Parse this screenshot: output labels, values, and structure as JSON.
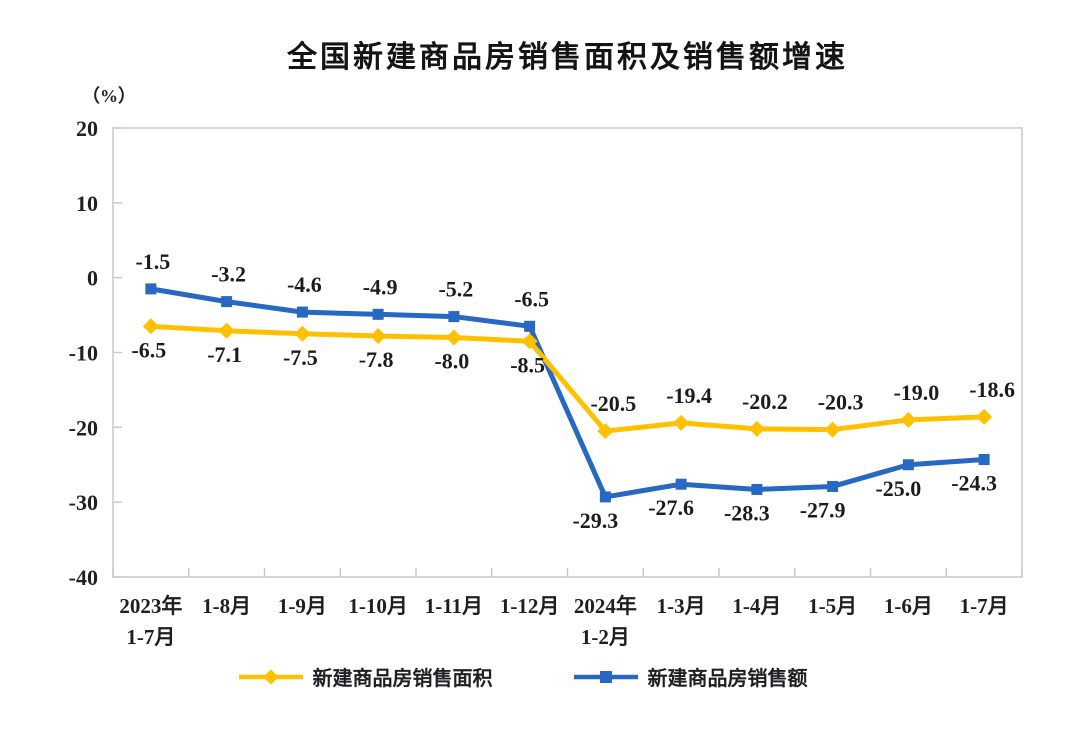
{
  "chart_data": {
    "type": "line",
    "title": "全国新建商品房销售面积及销售额增速",
    "unit_label": "（%）",
    "categories": [
      [
        "2023年",
        "1-7月"
      ],
      [
        "1-8月"
      ],
      [
        "1-9月"
      ],
      [
        "1-10月"
      ],
      [
        "1-11月"
      ],
      [
        "1-12月"
      ],
      [
        "2024年",
        "1-2月"
      ],
      [
        "1-3月"
      ],
      [
        "1-4月"
      ],
      [
        "1-5月"
      ],
      [
        "1-6月"
      ],
      [
        "1-7月"
      ]
    ],
    "series": [
      {
        "name": "新建商品房销售面积",
        "marker": "diamond",
        "color": "#FFC000",
        "values": [
          -6.5,
          -7.1,
          -7.5,
          -7.8,
          -8.0,
          -8.5,
          -20.5,
          -19.4,
          -20.2,
          -20.3,
          -19.0,
          -18.6
        ]
      },
      {
        "name": "新建商品房销售额",
        "marker": "square",
        "color": "#2768C3",
        "values": [
          -1.5,
          -3.2,
          -4.6,
          -4.9,
          -5.2,
          -6.5,
          -29.3,
          -27.6,
          -28.3,
          -27.9,
          -25.0,
          -24.3
        ]
      }
    ],
    "ylim": [
      -40,
      20
    ],
    "yticks": [
      20,
      10,
      0,
      -10,
      -20,
      -30,
      -40
    ],
    "grid": false,
    "legend_position": "bottom",
    "axis_color": "#C9C9C9",
    "label_color": "#1F1F23",
    "title_color": "#141414",
    "background_color": "#FFFFFF"
  }
}
